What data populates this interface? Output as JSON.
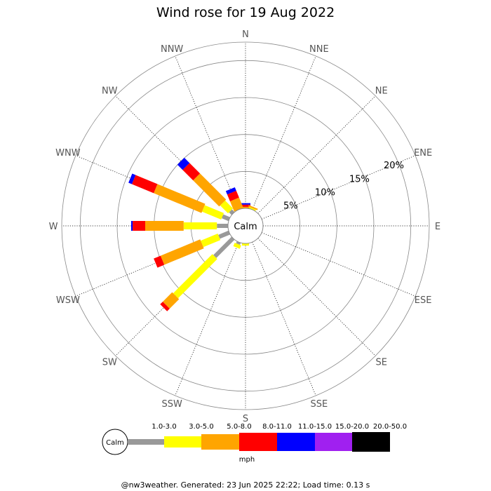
{
  "title": "Wind rose for 19 Aug 2022",
  "footer": "@nw3weather. Generated: 23 Jun 2025 22:22; Load time: 0.13 s",
  "chart_data": {
    "type": "wind-rose",
    "title": "Wind rose for 19 Aug 2022",
    "directions": [
      "N",
      "NNE",
      "NE",
      "ENE",
      "E",
      "ESE",
      "SE",
      "SSE",
      "S",
      "SSW",
      "SW",
      "WSW",
      "W",
      "WNW",
      "NW",
      "NNW"
    ],
    "rings": [
      5,
      10,
      15,
      20
    ],
    "ring_labels": [
      "5%",
      "10%",
      "15%",
      "20%"
    ],
    "rmax": 22.5,
    "calm_label": "Calm",
    "bins": [
      {
        "label": "1.0-3.0",
        "color": "#999999"
      },
      {
        "label": "3.0-5.0",
        "color": "#ffff00"
      },
      {
        "label": "5.0-8.0",
        "color": "#ffa500"
      },
      {
        "label": "8.0-11.0",
        "color": "#ff0000"
      },
      {
        "label": "11.0-15.0",
        "color": "#0000ff"
      },
      {
        "label": "15.0-20.0",
        "color": "#a020f0"
      },
      {
        "label": "20.0-50.0",
        "color": "#000000"
      }
    ],
    "unit_label": "mph",
    "series": [
      {
        "dir": "N",
        "values": [
          0.0,
          0.0,
          0.2,
          0.3,
          0.2,
          0.0,
          0.0
        ]
      },
      {
        "dir": "NNE",
        "values": [
          0.0,
          0.2,
          0.2,
          0.0,
          0.0,
          0.0,
          0.0
        ]
      },
      {
        "dir": "NE",
        "values": [
          0.0,
          0.0,
          0.0,
          0.0,
          0.0,
          0.0,
          0.0
        ]
      },
      {
        "dir": "ENE",
        "values": [
          0.0,
          0.0,
          0.0,
          0.0,
          0.0,
          0.0,
          0.0
        ]
      },
      {
        "dir": "E",
        "values": [
          0.0,
          0.0,
          0.0,
          0.0,
          0.0,
          0.0,
          0.0
        ]
      },
      {
        "dir": "ESE",
        "values": [
          0.0,
          0.0,
          0.0,
          0.0,
          0.0,
          0.0,
          0.0
        ]
      },
      {
        "dir": "SE",
        "values": [
          0.0,
          0.0,
          0.0,
          0.0,
          0.0,
          0.0,
          0.0
        ]
      },
      {
        "dir": "SSE",
        "values": [
          0.0,
          0.0,
          0.0,
          0.0,
          0.0,
          0.0,
          0.0
        ]
      },
      {
        "dir": "S",
        "values": [
          0.0,
          0.3,
          0.0,
          0.0,
          0.0,
          0.0,
          0.0
        ]
      },
      {
        "dir": "SSW",
        "values": [
          0.3,
          0.5,
          0.0,
          0.0,
          0.0,
          0.0,
          0.0
        ]
      },
      {
        "dir": "SW",
        "values": [
          3.5,
          7.5,
          1.8,
          0.5,
          0.0,
          0.0,
          0.0
        ]
      },
      {
        "dir": "WSW",
        "values": [
          1.5,
          2.5,
          5.8,
          1.0,
          0.0,
          0.0,
          0.0
        ]
      },
      {
        "dir": "W",
        "values": [
          1.5,
          4.5,
          5.2,
          1.7,
          0.2,
          0.0,
          0.0
        ]
      },
      {
        "dir": "WNW",
        "values": [
          1.0,
          2.8,
          7.0,
          3.2,
          0.5,
          0.0,
          0.0
        ]
      },
      {
        "dir": "NW",
        "values": [
          0.5,
          1.5,
          5.0,
          2.0,
          1.0,
          0.0,
          0.0
        ]
      },
      {
        "dir": "NNW",
        "values": [
          0.0,
          0.0,
          1.5,
          1.0,
          0.5,
          0.0,
          0.0
        ]
      }
    ]
  }
}
